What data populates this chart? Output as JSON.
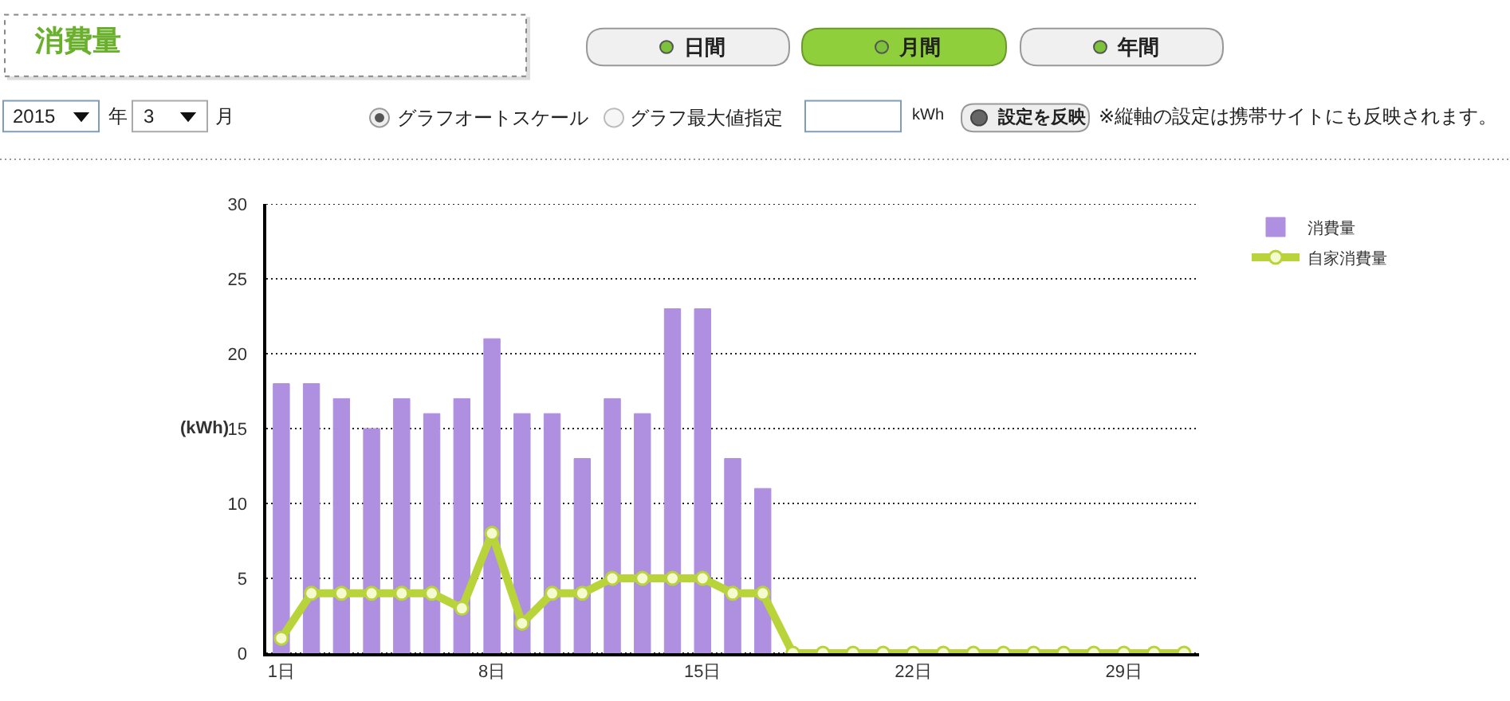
{
  "chart_data": {
    "type": "bar",
    "title": "消費量",
    "ylabel": "(kWh)",
    "categories": [
      "1日",
      null,
      null,
      null,
      null,
      null,
      null,
      "8日",
      null,
      null,
      null,
      null,
      null,
      null,
      "15日",
      null,
      null,
      null,
      null,
      null,
      null,
      "22日",
      null,
      null,
      null,
      null,
      null,
      null,
      "29日",
      null,
      null
    ],
    "series": [
      {
        "name": "消費量",
        "color": "#ae8fe0",
        "values": [
          18,
          18,
          17,
          15,
          17,
          16,
          17,
          21,
          16,
          16,
          13,
          17,
          16,
          23,
          23,
          13,
          11,
          null,
          null,
          null,
          null,
          null,
          null,
          null,
          null,
          null,
          null,
          null,
          null,
          null,
          null
        ]
      },
      {
        "name": "自家消費量",
        "type": "line",
        "color": "#b8d43a",
        "values": [
          1,
          4,
          4,
          4,
          4,
          4,
          3,
          8,
          2,
          4,
          4,
          5,
          5,
          5,
          5,
          4,
          4,
          0,
          0,
          0,
          0,
          0,
          0,
          0,
          0,
          0,
          0,
          0,
          0,
          0,
          0
        ]
      }
    ],
    "ylim": [
      0,
      30
    ],
    "yticks": [
      0,
      5,
      10,
      15,
      20,
      25,
      30
    ],
    "grid": "y",
    "legend": "top right",
    "marker": "circle",
    "annotations": [
      "日間",
      "月間",
      "年間",
      "2015",
      "年",
      "3",
      "月",
      "グラフオートスケール",
      "グラフ最大値指定",
      "kWh",
      "設定を反映",
      "※縦軸の設定は携帯サイトにも反映されます。"
    ]
  }
}
